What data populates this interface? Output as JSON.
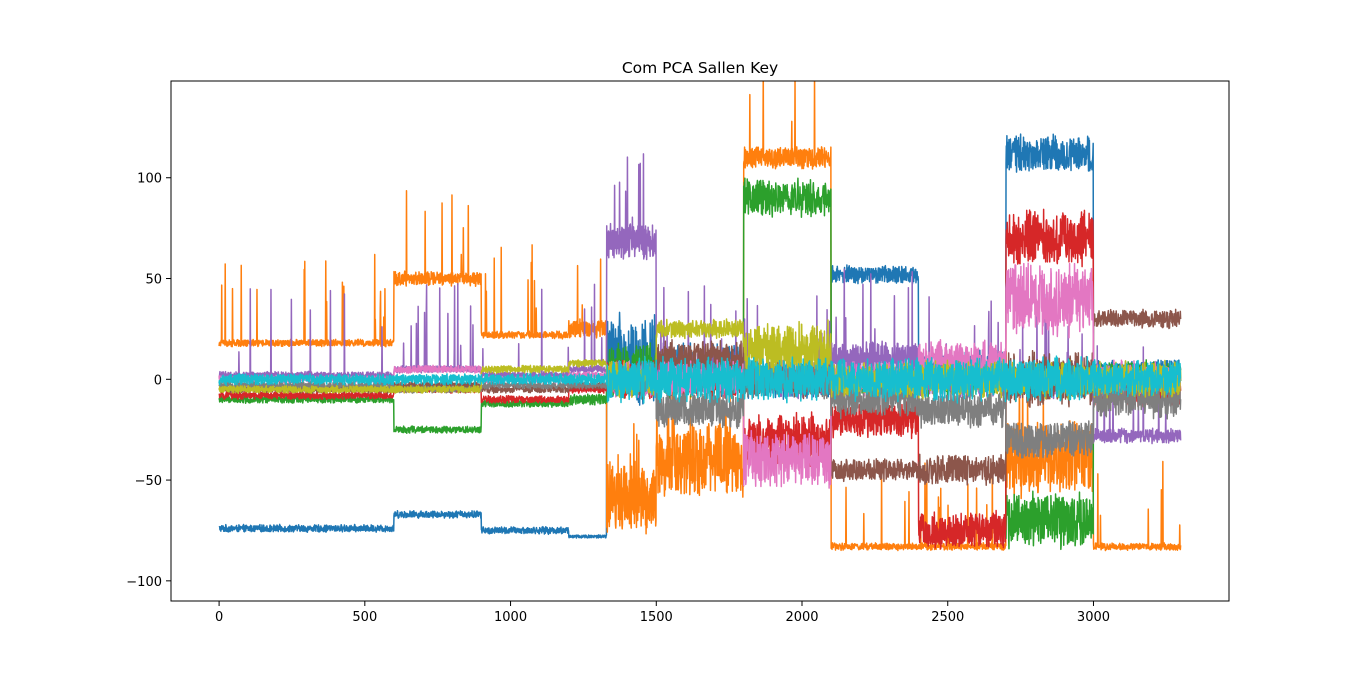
{
  "chart_data": {
    "type": "line",
    "title": "Com PCA Sallen Key",
    "xlabel": "",
    "ylabel": "",
    "xlim": [
      -165,
      3465
    ],
    "ylim": [
      -110,
      148
    ],
    "x_ticks": [
      0,
      500,
      1000,
      1500,
      2000,
      2500,
      3000
    ],
    "y_ticks": [
      -100,
      -50,
      0,
      50,
      100
    ],
    "x_tick_labels": [
      "0",
      "500",
      "1000",
      "1500",
      "2000",
      "2500",
      "3000"
    ],
    "y_tick_labels": [
      "−100",
      "−50",
      "0",
      "50",
      "100"
    ],
    "grid": false,
    "legend": "none",
    "n_points": 3300,
    "segment_boundaries": [
      0,
      600,
      900,
      1200,
      1330,
      1500,
      1800,
      2100,
      2400,
      2700,
      3000,
      3300
    ],
    "series": [
      {
        "color": "#1f77b4",
        "segment_levels": [
          -74,
          -67,
          -75,
          -78,
          10,
          5,
          0,
          52,
          5,
          112,
          5
        ],
        "segment_noise": [
          2,
          2,
          2,
          1,
          25,
          15,
          10,
          5,
          10,
          10,
          5
        ],
        "spikes": "none"
      },
      {
        "color": "#ff7f0e",
        "segment_levels": [
          18,
          50,
          22,
          25,
          -60,
          -40,
          110,
          -83,
          -83,
          -40,
          -83
        ],
        "segment_noise": [
          2,
          4,
          2,
          5,
          20,
          20,
          6,
          2,
          2,
          20,
          2
        ],
        "spikes": "up"
      },
      {
        "color": "#2ca02c",
        "segment_levels": [
          -10,
          -25,
          -12,
          -10,
          5,
          0,
          90,
          0,
          0,
          -70,
          0
        ],
        "segment_noise": [
          2,
          2,
          2,
          3,
          15,
          10,
          10,
          8,
          10,
          15,
          10
        ],
        "spikes": "none"
      },
      {
        "color": "#d62728",
        "segment_levels": [
          -8,
          -5,
          -10,
          -5,
          0,
          0,
          -30,
          -20,
          -75,
          70,
          -5
        ],
        "segment_noise": [
          2,
          2,
          2,
          2,
          10,
          10,
          15,
          10,
          10,
          15,
          10
        ],
        "spikes": "none"
      },
      {
        "color": "#9467bd",
        "segment_levels": [
          2,
          5,
          2,
          5,
          68,
          5,
          0,
          10,
          0,
          0,
          -28
        ],
        "segment_noise": [
          2,
          2,
          2,
          2,
          10,
          10,
          10,
          10,
          10,
          10,
          4
        ],
        "spikes": "up"
      },
      {
        "color": "#8c564b",
        "segment_levels": [
          -5,
          -3,
          -5,
          -3,
          0,
          10,
          0,
          -45,
          -45,
          0,
          30
        ],
        "segment_noise": [
          2,
          2,
          2,
          2,
          10,
          10,
          10,
          6,
          8,
          15,
          5
        ],
        "spikes": "none"
      },
      {
        "color": "#e377c2",
        "segment_levels": [
          0,
          5,
          0,
          2,
          0,
          0,
          -40,
          0,
          10,
          40,
          0
        ],
        "segment_noise": [
          2,
          2,
          2,
          2,
          10,
          10,
          15,
          10,
          10,
          20,
          10
        ],
        "spikes": "none"
      },
      {
        "color": "#7f7f7f",
        "segment_levels": [
          -3,
          -5,
          -3,
          -3,
          0,
          -15,
          0,
          -10,
          -15,
          -30,
          -10
        ],
        "segment_noise": [
          2,
          2,
          2,
          2,
          10,
          10,
          10,
          10,
          10,
          10,
          10
        ],
        "spikes": "none"
      },
      {
        "color": "#bcbd22",
        "segment_levels": [
          -5,
          -5,
          5,
          8,
          0,
          25,
          15,
          0,
          0,
          0,
          0
        ],
        "segment_noise": [
          2,
          2,
          2,
          2,
          10,
          5,
          15,
          10,
          10,
          10,
          10
        ],
        "spikes": "none"
      },
      {
        "color": "#17becf",
        "segment_levels": [
          0,
          0,
          0,
          0,
          0,
          0,
          0,
          0,
          0,
          0,
          0
        ],
        "segment_noise": [
          3,
          3,
          3,
          3,
          12,
          12,
          12,
          12,
          12,
          12,
          10
        ],
        "spikes": "none"
      }
    ]
  }
}
